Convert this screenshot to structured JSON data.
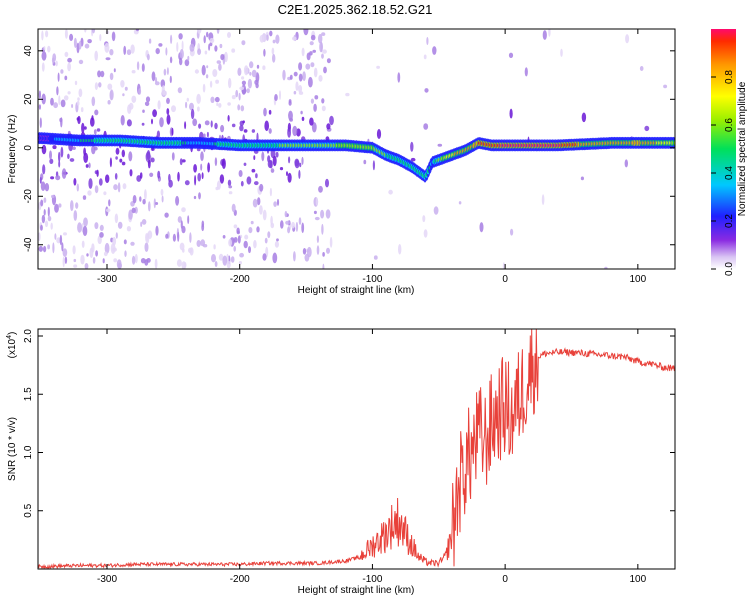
{
  "figure": {
    "title": "C2E1.2025.362.18.52.G21"
  },
  "chart_data": [
    {
      "type": "heatmap",
      "title": "C2E1.2025.362.18.52.G21",
      "xlabel": "Height of straight line (km)",
      "ylabel": "Frequency (Hz)",
      "xlim": [
        -352,
        128
      ],
      "ylim": [
        -50,
        49
      ],
      "xticks": [
        "-300",
        "-200",
        "-100",
        "0",
        "100"
      ],
      "xtick_values": [
        -300,
        -200,
        -100,
        0,
        100
      ],
      "yticks": [
        "40",
        "20",
        "0",
        "-20",
        "-40"
      ],
      "ytick_values": [
        40,
        20,
        0,
        -20,
        -40
      ],
      "colorbar": {
        "label": "Normalized spectral amplitude",
        "range": [
          0,
          1
        ],
        "ticks": [
          "0.0",
          "0.2",
          "0.4",
          "0.6",
          "0.8"
        ],
        "tick_values": [
          0.0,
          0.2,
          0.4,
          0.6,
          0.8
        ],
        "colormap": "rainbow"
      },
      "ridge": {
        "x": [
          -350,
          -320,
          -290,
          -260,
          -230,
          -200,
          -170,
          -140,
          -120,
          -100,
          -90,
          -80,
          -70,
          -60,
          -55,
          -50,
          -40,
          -30,
          -20,
          -10,
          0,
          20,
          40,
          60,
          80,
          100,
          128
        ],
        "frequency": [
          4,
          3,
          3,
          2,
          2,
          1,
          1,
          1,
          1,
          0,
          -3,
          -5,
          -8,
          -12,
          -6,
          -5,
          -3,
          -1,
          2,
          1,
          1,
          1,
          1,
          1.5,
          2,
          2,
          2
        ],
        "amplitude": [
          0.15,
          0.35,
          0.4,
          0.45,
          0.3,
          0.45,
          0.5,
          0.55,
          0.6,
          0.6,
          0.5,
          0.45,
          0.5,
          0.45,
          0.3,
          0.55,
          0.7,
          0.8,
          0.85,
          0.9,
          1.0,
          0.98,
          0.97,
          0.8,
          0.75,
          0.85,
          0.6
        ]
      }
    },
    {
      "type": "line",
      "xlabel": "Height of straight line (km)",
      "ylabel": "SNR (10 * v/v)",
      "y_multiplier": "(x10",
      "y_multiplier_exp": "4",
      "y_multiplier_close": ")",
      "xlim": [
        -352,
        128
      ],
      "ylim": [
        0,
        2.06
      ],
      "xticks": [
        "-300",
        "-200",
        "-100",
        "0",
        "100"
      ],
      "xtick_values": [
        -300,
        -200,
        -100,
        0,
        100
      ],
      "yticks": [
        "0.5",
        "1.0",
        "1.5",
        "2.0"
      ],
      "ytick_values": [
        0.5,
        1.0,
        1.5,
        2.0
      ],
      "color": "#e8413a",
      "series": [
        {
          "x": [
            -352,
            -320,
            -300,
            -280,
            -260,
            -240,
            -220,
            -200,
            -180,
            -160,
            -140,
            -120,
            -110,
            -100,
            -90,
            -85,
            -80,
            -75,
            -70,
            -65,
            -60,
            -55,
            -50,
            -45,
            -40,
            -35,
            -30,
            -25,
            -20,
            -15,
            -10,
            -5,
            0,
            5,
            10,
            15,
            20,
            25,
            30,
            40,
            50,
            60,
            70,
            80,
            90,
            100,
            110,
            120,
            128
          ],
          "values": [
            0.02,
            0.03,
            0.03,
            0.04,
            0.04,
            0.04,
            0.04,
            0.04,
            0.05,
            0.05,
            0.05,
            0.07,
            0.1,
            0.2,
            0.3,
            0.38,
            0.42,
            0.3,
            0.2,
            0.1,
            0.06,
            0.05,
            0.05,
            0.1,
            0.3,
            0.7,
            0.9,
            1.0,
            1.15,
            1.1,
            1.25,
            1.35,
            1.4,
            1.3,
            1.45,
            1.6,
            1.75,
            1.82,
            1.85,
            1.86,
            1.86,
            1.85,
            1.84,
            1.83,
            1.82,
            1.78,
            1.76,
            1.73,
            1.72
          ]
        }
      ]
    }
  ]
}
